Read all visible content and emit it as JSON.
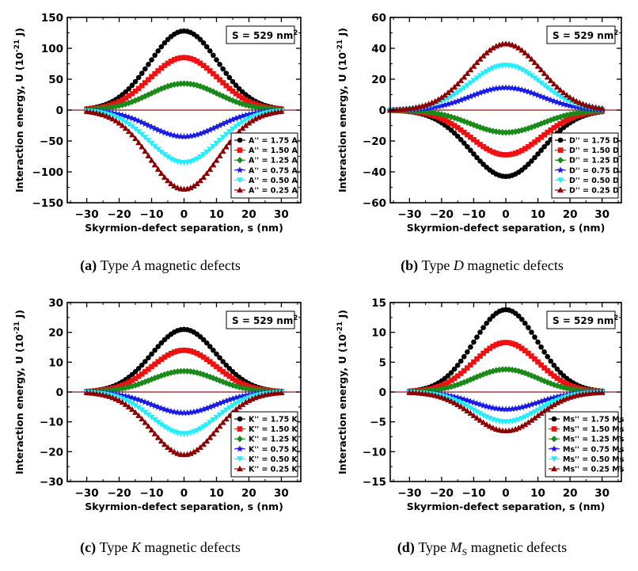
{
  "colors": {
    "black": "#000000",
    "red": "#ee1111",
    "green": "#1a8a1a",
    "blue": "#1a1ae6",
    "cyan": "#22eeff",
    "darkred": "#8b0000",
    "zeroline": "#8b1a1a"
  },
  "chart_data": [
    {
      "type": "line",
      "panel_label": "(a)",
      "caption_pre": "Type",
      "caption_var": "A",
      "caption_sub": "",
      "caption_post": "magnetic defects",
      "annotation": "S = 529 nm",
      "annotation_sup": "2",
      "xlabel": "Skyrmion-defect separation, s (nm)",
      "ylabel": "Interaction energy, U (10",
      "ylabel_sup": "-21",
      "ylabel_tail": " J)",
      "xlim": [
        -36,
        36
      ],
      "ylim": [
        -150,
        150
      ],
      "xticks": [
        -30,
        -20,
        -10,
        0,
        10,
        20,
        30
      ],
      "xtick_labels": [
        "−30",
        "−20",
        "−10",
        "0",
        "10",
        "20",
        "30"
      ],
      "yticks": [
        -150,
        -100,
        -50,
        0,
        50,
        100,
        150
      ],
      "ytick_labels": [
        "−150",
        "−100",
        "−50",
        "0",
        "50",
        "100",
        "150"
      ],
      "x_range": [
        -30,
        30
      ],
      "curve_width": 10.5,
      "legend_position": "bottom-right",
      "series": [
        {
          "name": "A'' = 1.75 A",
          "peak": 128,
          "color": "black",
          "marker": "circle"
        },
        {
          "name": "A'' = 1.50 A",
          "peak": 85,
          "color": "red",
          "marker": "square"
        },
        {
          "name": "A'' = 1.25 A",
          "peak": 43,
          "color": "green",
          "marker": "diamond"
        },
        {
          "name": "A'' = 0.75 A",
          "peak": -43,
          "color": "blue",
          "marker": "star"
        },
        {
          "name": "A'' = 0.50 A",
          "peak": -85,
          "color": "cyan",
          "marker": "triangle-down"
        },
        {
          "name": "A'' = 0.25 A",
          "peak": -128,
          "color": "darkred",
          "marker": "triangle-up"
        }
      ]
    },
    {
      "type": "line",
      "panel_label": "(b)",
      "caption_pre": "Type",
      "caption_var": "D",
      "caption_sub": "",
      "caption_post": "magnetic defects",
      "annotation": "S = 529 nm",
      "annotation_sup": "2",
      "xlabel": "Skyrmion-defect separation, s (nm)",
      "ylabel": "Interaction energy, U (10",
      "ylabel_sup": "-21",
      "ylabel_tail": " J)",
      "xlim": [
        -36,
        36
      ],
      "ylim": [
        -60,
        60
      ],
      "xticks": [
        -30,
        -20,
        -10,
        0,
        10,
        20,
        30
      ],
      "xtick_labels": [
        "−30",
        "−20",
        "−10",
        "0",
        "10",
        "20",
        "30"
      ],
      "yticks": [
        -60,
        -40,
        -20,
        0,
        20,
        40,
        60
      ],
      "ytick_labels": [
        "−60",
        "−40",
        "−20",
        "0",
        "20",
        "40",
        "60"
      ],
      "x_range": [
        -36,
        30
      ],
      "curve_width": 11,
      "legend_position": "bottom-right",
      "series": [
        {
          "name": "D'' = 1.75 D",
          "peak": -43,
          "color": "black",
          "marker": "circle"
        },
        {
          "name": "D'' = 1.50 D",
          "peak": -29,
          "color": "red",
          "marker": "square"
        },
        {
          "name": "D'' = 1.25 D",
          "peak": -14.5,
          "color": "green",
          "marker": "diamond"
        },
        {
          "name": "D'' = 0.75 D",
          "peak": 14.5,
          "color": "blue",
          "marker": "star"
        },
        {
          "name": "D'' = 0.50 D",
          "peak": 29,
          "color": "cyan",
          "marker": "triangle-down"
        },
        {
          "name": "D'' = 0.25 D",
          "peak": 43,
          "color": "darkred",
          "marker": "triangle-up"
        }
      ]
    },
    {
      "type": "line",
      "panel_label": "(c)",
      "caption_pre": "Type",
      "caption_var": "K",
      "caption_sub": "",
      "caption_post": "magnetic defects",
      "annotation": "S = 529 nm",
      "annotation_sup": "2",
      "xlabel": "Skyrmion-defect separation, s (nm)",
      "ylabel": "Interaction energy, U (10",
      "ylabel_sup": "-21",
      "ylabel_tail": " J)",
      "xlim": [
        -36,
        36
      ],
      "ylim": [
        -30,
        30
      ],
      "xticks": [
        -30,
        -20,
        -10,
        0,
        10,
        20,
        30
      ],
      "xtick_labels": [
        "−30",
        "−20",
        "−10",
        "0",
        "10",
        "20",
        "30"
      ],
      "yticks": [
        -30,
        -20,
        -10,
        0,
        10,
        20,
        30
      ],
      "ytick_labels": [
        "−30",
        "−20",
        "−10",
        "0",
        "10",
        "20",
        "30"
      ],
      "x_range": [
        -30,
        30
      ],
      "curve_width": 10,
      "legend_position": "bottom-right",
      "series": [
        {
          "name": "K'' = 1.75 K",
          "peak": 21,
          "color": "black",
          "marker": "circle"
        },
        {
          "name": "K'' = 1.50 K",
          "peak": 14,
          "color": "red",
          "marker": "square"
        },
        {
          "name": "K'' = 1.25 K",
          "peak": 7,
          "color": "green",
          "marker": "diamond"
        },
        {
          "name": "K'' = 0.75 K",
          "peak": -7,
          "color": "blue",
          "marker": "star"
        },
        {
          "name": "K'' = 0.50 K",
          "peak": -14,
          "color": "cyan",
          "marker": "triangle-down"
        },
        {
          "name": "K'' = 0.25 K",
          "peak": -21,
          "color": "darkred",
          "marker": "triangle-up"
        }
      ]
    },
    {
      "type": "line",
      "panel_label": "(d)",
      "caption_pre": "Type",
      "caption_var": "M",
      "caption_sub": "S",
      "caption_post": "magnetic defects",
      "annotation": "S = 529 nm",
      "annotation_sup": "2",
      "xlabel": "Skyrmion-defect separation, s (nm)",
      "ylabel": "Interaction energy, U (10",
      "ylabel_sup": "-21",
      "ylabel_tail": " J)",
      "xlim": [
        -36,
        36
      ],
      "ylim": [
        -15,
        15
      ],
      "xticks": [
        -30,
        -20,
        -10,
        0,
        10,
        20,
        30
      ],
      "xtick_labels": [
        "−30",
        "−20",
        "−10",
        "0",
        "10",
        "20",
        "30"
      ],
      "yticks": [
        -15,
        -10,
        -5,
        0,
        5,
        10,
        15
      ],
      "ytick_labels": [
        "−15",
        "−10",
        "−5",
        "0",
        "5",
        "10",
        "15"
      ],
      "x_range": [
        -30,
        30
      ],
      "curve_width": 10,
      "legend_position": "bottom-right",
      "series": [
        {
          "name": "Ms'' = 1.75 Ms",
          "peak": 13.8,
          "color": "black",
          "marker": "circle"
        },
        {
          "name": "Ms'' = 1.50 Ms",
          "peak": 8.3,
          "color": "red",
          "marker": "square"
        },
        {
          "name": "Ms'' = 1.25 Ms",
          "peak": 3.8,
          "color": "green",
          "marker": "diamond"
        },
        {
          "name": "Ms'' = 0.75 Ms",
          "peak": -2.9,
          "color": "blue",
          "marker": "star"
        },
        {
          "name": "Ms'' = 0.50 Ms",
          "peak": -5.0,
          "color": "cyan",
          "marker": "triangle-down"
        },
        {
          "name": "Ms'' = 0.25 Ms",
          "peak": -6.5,
          "color": "darkred",
          "marker": "triangle-up"
        }
      ]
    }
  ]
}
